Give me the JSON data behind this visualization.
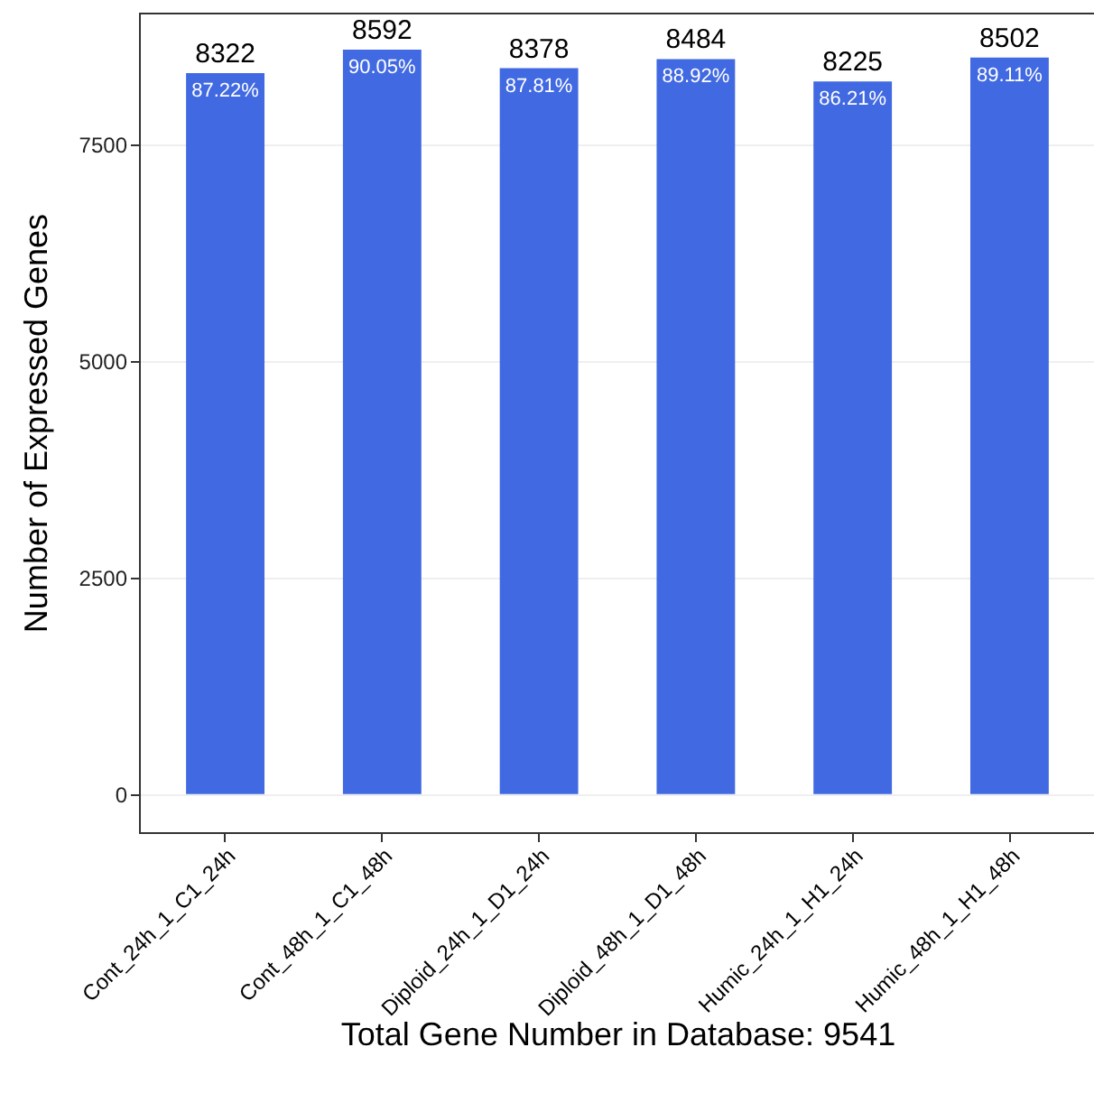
{
  "chart_data": {
    "type": "bar",
    "categories": [
      "Cont_24h_1_C1_24h",
      "Cont_48h_1_C1_48h",
      "Diploid_24h_1_D1_24h",
      "Diploid_48h_1_D1_48h",
      "Humic_24h_1_H1_24h",
      "Humic_48h_1_H1_48h"
    ],
    "values": [
      8322,
      8592,
      8378,
      8484,
      8225,
      8502
    ],
    "color": "#4169e1",
    "data_labels": true,
    "annotations": [
      {
        "text": "87.22%",
        "x": "Cont_24h_1_C1_24h",
        "y": 8322
      },
      {
        "text": "90.05%",
        "x": "Cont_48h_1_C1_48h",
        "y": 8592
      },
      {
        "text": "87.81%",
        "x": "Diploid_24h_1_D1_24h",
        "y": 8378
      },
      {
        "text": "88.92%",
        "x": "Diploid_48h_1_D1_48h",
        "y": 8484
      },
      {
        "text": "86.21%",
        "x": "Humic_24h_1_H1_24h",
        "y": 8225
      },
      {
        "text": "89.11%",
        "x": "Humic_48h_1_H1_48h",
        "y": 8502
      }
    ],
    "xlabel": "Total Gene Number in Database: 9541",
    "ylabel": "Number of Expressed Genes",
    "ylim": [
      -440,
      9020
    ],
    "yticks": [
      0,
      2500,
      5000,
      7500
    ],
    "grid": "y"
  }
}
